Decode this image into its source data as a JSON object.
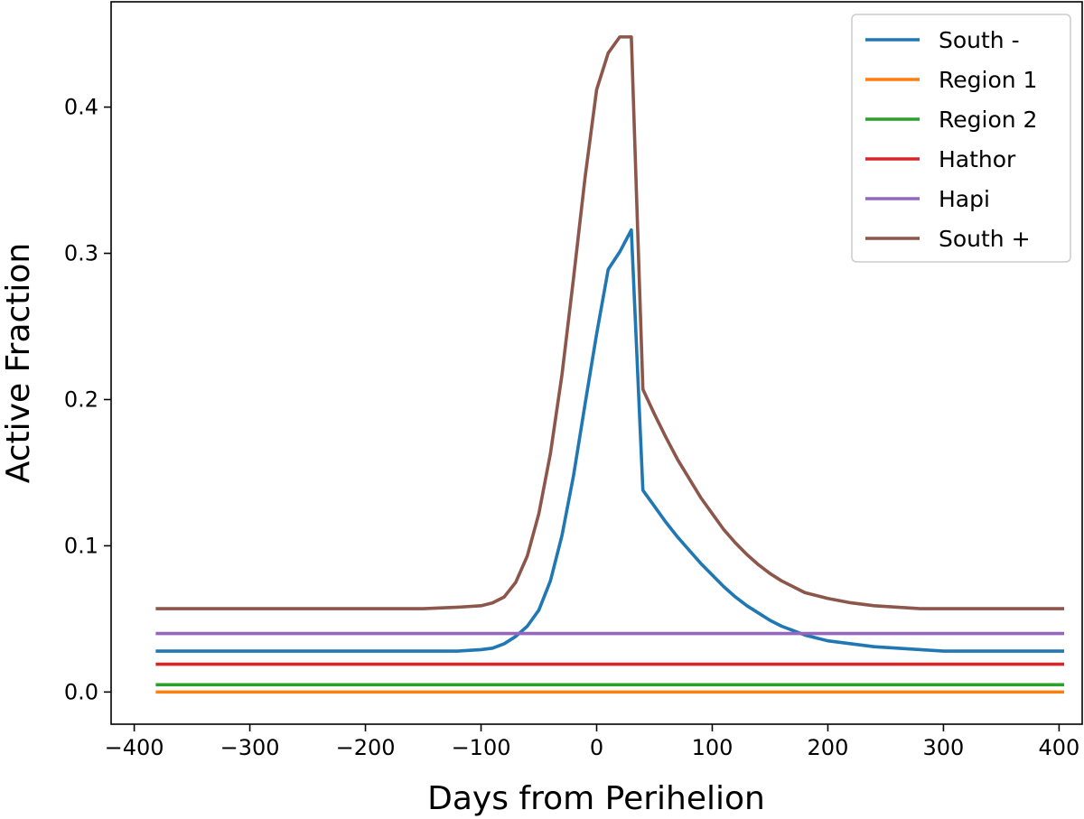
{
  "chart_data": {
    "type": "line",
    "title": "",
    "xlabel": "Days from Perihelion",
    "ylabel": "Active Fraction",
    "xlim": [
      -420,
      420
    ],
    "ylim": [
      -0.022,
      0.472
    ],
    "xticks": [
      -400,
      -300,
      -200,
      -100,
      0,
      100,
      200,
      300,
      400
    ],
    "xtick_labels": [
      "−400",
      "−300",
      "−200",
      "−100",
      "0",
      "100",
      "200",
      "300",
      "400"
    ],
    "yticks": [
      0.0,
      0.1,
      0.2,
      0.3,
      0.4
    ],
    "ytick_labels": [
      "0.0",
      "0.1",
      "0.2",
      "0.3",
      "0.4"
    ],
    "grid": false,
    "legend_position": "top-right",
    "series": [
      {
        "name": "South -",
        "color": "#1f77b4",
        "x": [
          -380,
          -300,
          -200,
          -150,
          -120,
          -100,
          -90,
          -80,
          -70,
          -60,
          -50,
          -40,
          -30,
          -20,
          -10,
          0,
          10,
          20,
          30,
          40,
          50,
          60,
          70,
          80,
          90,
          100,
          110,
          120,
          130,
          140,
          150,
          160,
          170,
          180,
          190,
          200,
          220,
          240,
          260,
          280,
          300,
          330,
          360,
          403
        ],
        "y": [
          0.028,
          0.028,
          0.028,
          0.028,
          0.028,
          0.029,
          0.03,
          0.033,
          0.038,
          0.045,
          0.056,
          0.076,
          0.107,
          0.148,
          0.197,
          0.245,
          0.289,
          0.301,
          0.316,
          0.138,
          0.127,
          0.116,
          0.106,
          0.097,
          0.088,
          0.08,
          0.072,
          0.065,
          0.059,
          0.054,
          0.049,
          0.045,
          0.042,
          0.039,
          0.037,
          0.035,
          0.033,
          0.031,
          0.03,
          0.029,
          0.028,
          0.028,
          0.028,
          0.028
        ]
      },
      {
        "name": "Region 1",
        "color": "#ff7f0e",
        "x": [
          -380,
          403
        ],
        "y": [
          0.0,
          0.0
        ]
      },
      {
        "name": "Region 2",
        "color": "#2ca02c",
        "x": [
          -380,
          403
        ],
        "y": [
          0.005,
          0.005
        ]
      },
      {
        "name": "Hathor",
        "color": "#d62728",
        "x": [
          -380,
          403
        ],
        "y": [
          0.019,
          0.019
        ]
      },
      {
        "name": "Hapi",
        "color": "#9467bd",
        "x": [
          -380,
          403
        ],
        "y": [
          0.04,
          0.04
        ]
      },
      {
        "name": "South +",
        "color": "#8c564b",
        "x": [
          -380,
          -300,
          -200,
          -150,
          -120,
          -100,
          -90,
          -80,
          -70,
          -60,
          -50,
          -40,
          -30,
          -20,
          -10,
          0,
          10,
          20,
          30,
          40,
          50,
          60,
          70,
          80,
          90,
          100,
          110,
          120,
          130,
          140,
          150,
          160,
          170,
          180,
          190,
          200,
          220,
          240,
          260,
          280,
          300,
          330,
          360,
          403
        ],
        "y": [
          0.057,
          0.057,
          0.057,
          0.057,
          0.058,
          0.059,
          0.061,
          0.065,
          0.075,
          0.093,
          0.122,
          0.163,
          0.217,
          0.283,
          0.352,
          0.412,
          0.437,
          0.448,
          0.448,
          0.207,
          0.19,
          0.174,
          0.159,
          0.146,
          0.133,
          0.122,
          0.111,
          0.102,
          0.094,
          0.087,
          0.081,
          0.076,
          0.072,
          0.068,
          0.066,
          0.064,
          0.061,
          0.059,
          0.058,
          0.057,
          0.057,
          0.057,
          0.057,
          0.057
        ]
      }
    ]
  }
}
